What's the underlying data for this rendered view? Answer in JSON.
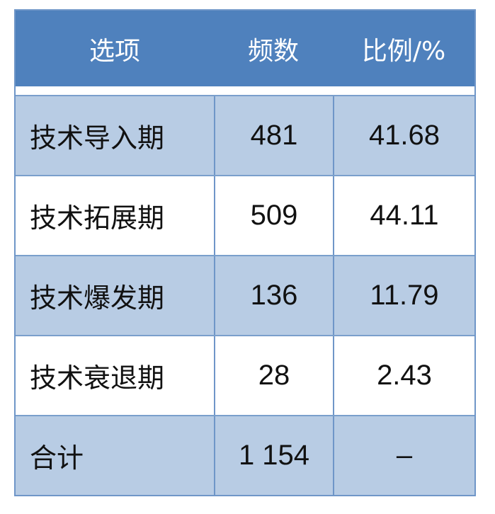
{
  "table": {
    "headers": [
      "选项",
      "频数",
      "比例/%"
    ],
    "rows": [
      [
        "技术导入期",
        "481",
        "41.68"
      ],
      [
        "技术拓展期",
        "509",
        "44.11"
      ],
      [
        "技术爆发期",
        "136",
        "11.79"
      ],
      [
        "技术衰退期",
        "28",
        "2.43"
      ],
      [
        "合计",
        "1 154",
        "–"
      ]
    ]
  },
  "colors": {
    "header": "#4f81bd",
    "band": "#b8cce4",
    "border": "#6f96c8"
  }
}
